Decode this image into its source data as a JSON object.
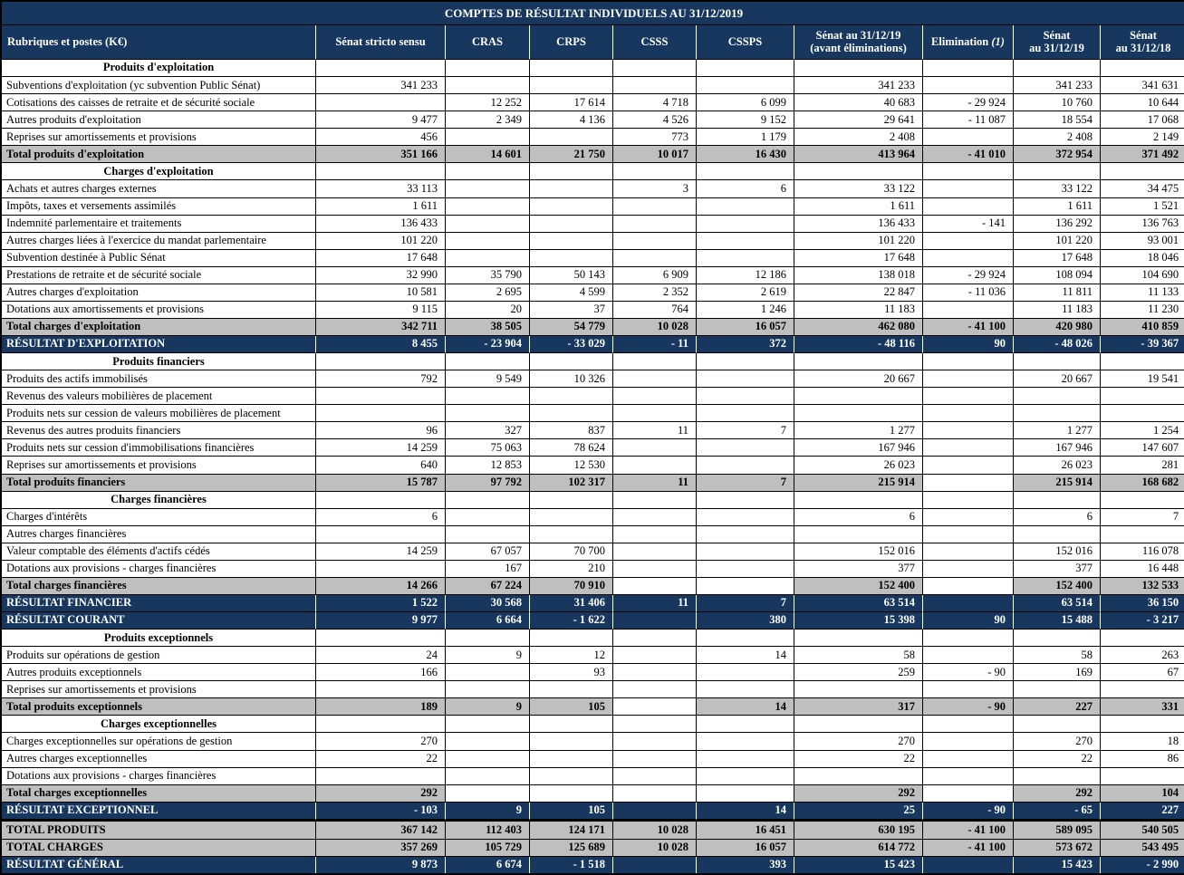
{
  "title": "COMPTES DE RÉSULTAT INDIVIDUELS AU 31/12/2019",
  "colors": {
    "navy": "#17375E",
    "gray": "#BFBFBF"
  },
  "columns": [
    {
      "id": "rubriques",
      "label": "Rubriques et postes (K€)"
    },
    {
      "id": "senat-stricto-sensu",
      "label": "Sénat stricto sensu"
    },
    {
      "id": "cras",
      "label": "CRAS"
    },
    {
      "id": "crps",
      "label": "CRPS"
    },
    {
      "id": "csss",
      "label": "CSSS"
    },
    {
      "id": "cssps",
      "label": "CSSPS"
    },
    {
      "id": "senat-avant-eliminations",
      "label": "Sénat au 31/12/19",
      "sublabel": "(avant éliminations)"
    },
    {
      "id": "elimination",
      "label": "Elimination",
      "note": "(1)"
    },
    {
      "id": "senat-31-12-19",
      "label": "Sénat",
      "sublabel": "au 31/12/19"
    },
    {
      "id": "senat-31-12-18",
      "label": "Sénat",
      "sublabel": "au 31/12/18"
    }
  ],
  "rows": [
    {
      "type": "section",
      "label": "Produits d'exploitation",
      "values": [
        "",
        "",
        "",
        "",
        "",
        "",
        "",
        "",
        ""
      ]
    },
    {
      "type": "data",
      "label": "Subventions d'exploitation (yc subvention Public Sénat)",
      "values": [
        "341 233",
        "",
        "",
        "",
        "",
        "341 233",
        "",
        "341 233",
        "341 631"
      ]
    },
    {
      "type": "data",
      "label": "Cotisations des caisses de retraite et de sécurité sociale",
      "values": [
        "",
        "12 252",
        "17 614",
        "4 718",
        "6 099",
        "40 683",
        "- 29 924",
        "10 760",
        "10 644"
      ]
    },
    {
      "type": "data",
      "label": "Autres produits d'exploitation",
      "values": [
        "9 477",
        "2 349",
        "4 136",
        "4 526",
        "9 152",
        "29 641",
        "- 11 087",
        "18 554",
        "17 068"
      ]
    },
    {
      "type": "data",
      "label": "Reprises sur amortissements et provisions",
      "values": [
        "456",
        "",
        "",
        "773",
        "1 179",
        "2 408",
        "",
        "2 408",
        "2 149"
      ]
    },
    {
      "type": "total",
      "label": "Total produits d'exploitation",
      "values": [
        "351 166",
        "14 601",
        "21 750",
        "10 017",
        "16 430",
        "413 964",
        "- 41 010",
        "372 954",
        "371 492"
      ]
    },
    {
      "type": "section",
      "label": "Charges d'exploitation",
      "values": [
        "",
        "",
        "",
        "",
        "",
        "",
        "",
        "",
        ""
      ]
    },
    {
      "type": "data",
      "label": "Achats et autres charges externes",
      "values": [
        "33 113",
        "",
        "",
        "3",
        "6",
        "33 122",
        "",
        "33 122",
        "34 475"
      ]
    },
    {
      "type": "data",
      "label": "Impôts, taxes et versements assimilés",
      "values": [
        "1 611",
        "",
        "",
        "",
        "",
        "1 611",
        "",
        "1 611",
        "1 521"
      ]
    },
    {
      "type": "data",
      "label": "Indemnité parlementaire et traitements",
      "values": [
        "136 433",
        "",
        "",
        "",
        "",
        "136 433",
        "- 141",
        "136 292",
        "136 763"
      ]
    },
    {
      "type": "data",
      "label": "Autres charges liées à l'exercice du mandat parlementaire",
      "values": [
        "101 220",
        "",
        "",
        "",
        "",
        "101 220",
        "",
        "101 220",
        "93 001"
      ]
    },
    {
      "type": "data",
      "label": "Subvention destinée à Public Sénat",
      "values": [
        "17 648",
        "",
        "",
        "",
        "",
        "17 648",
        "",
        "17 648",
        "18 046"
      ]
    },
    {
      "type": "data",
      "label": "Prestations de retraite et de sécurité sociale",
      "values": [
        "32 990",
        "35 790",
        "50 143",
        "6 909",
        "12 186",
        "138 018",
        "- 29 924",
        "108 094",
        "104 690"
      ]
    },
    {
      "type": "data",
      "label": "Autres charges d'exploitation",
      "values": [
        "10 581",
        "2 695",
        "4 599",
        "2 352",
        "2 619",
        "22 847",
        "- 11 036",
        "11 811",
        "11 133"
      ]
    },
    {
      "type": "data",
      "label": "Dotations aux amortissements et provisions",
      "values": [
        "9 115",
        "20",
        "37",
        "764",
        "1 246",
        "11 183",
        "",
        "11 183",
        "11 230"
      ]
    },
    {
      "type": "total",
      "label": "Total charges d'exploitation",
      "values": [
        "342 711",
        "38 505",
        "54 779",
        "10 028",
        "16 057",
        "462 080",
        "- 41 100",
        "420 980",
        "410 859"
      ]
    },
    {
      "type": "result",
      "label": "RÉSULTAT D'EXPLOITATION",
      "values": [
        "8 455",
        "- 23 904",
        "- 33 029",
        "- 11",
        "372",
        "- 48 116",
        "90",
        "- 48 026",
        "- 39 367"
      ]
    },
    {
      "type": "section",
      "label": "Produits financiers",
      "values": [
        "",
        "",
        "",
        "",
        "",
        "",
        "",
        "",
        ""
      ]
    },
    {
      "type": "data",
      "label": "Produits des actifs immobilisés",
      "values": [
        "792",
        "9 549",
        "10 326",
        "",
        "",
        "20 667",
        "",
        "20 667",
        "19 541"
      ]
    },
    {
      "type": "data",
      "label": "Revenus des valeurs mobilières de placement",
      "values": [
        "",
        "",
        "",
        "",
        "",
        "",
        "",
        "",
        ""
      ]
    },
    {
      "type": "data",
      "label": "Produits nets sur cession de valeurs mobilières de placement",
      "values": [
        "",
        "",
        "",
        "",
        "",
        "",
        "",
        "",
        ""
      ]
    },
    {
      "type": "data",
      "label": "Revenus des autres produits financiers",
      "values": [
        "96",
        "327",
        "837",
        "11",
        "7",
        "1 277",
        "",
        "1 277",
        "1 254"
      ]
    },
    {
      "type": "data",
      "label": "Produits nets sur cession d'immobilisations financières",
      "values": [
        "14 259",
        "75 063",
        "78 624",
        "",
        "",
        "167 946",
        "",
        "167 946",
        "147 607"
      ]
    },
    {
      "type": "data",
      "label": "Reprises sur amortissements et provisions",
      "values": [
        "640",
        "12 853",
        "12 530",
        "",
        "",
        "26 023",
        "",
        "26 023",
        "281"
      ]
    },
    {
      "type": "total",
      "label": "Total produits financiers",
      "values": [
        "15 787",
        "97 792",
        "102 317",
        "11",
        "7",
        "215 914",
        "",
        "215 914",
        "168 682"
      ]
    },
    {
      "type": "section",
      "label": "Charges financières",
      "values": [
        "",
        "",
        "",
        "",
        "",
        "",
        "",
        "",
        ""
      ]
    },
    {
      "type": "data",
      "label": "Charges d'intérêts",
      "values": [
        "6",
        "",
        "",
        "",
        "",
        "6",
        "",
        "6",
        "7"
      ]
    },
    {
      "type": "data",
      "label": "Autres charges financières",
      "values": [
        "",
        "",
        "",
        "",
        "",
        "",
        "",
        "",
        ""
      ]
    },
    {
      "type": "data",
      "label": "Valeur comptable des éléments d'actifs cédés",
      "values": [
        "14 259",
        "67 057",
        "70 700",
        "",
        "",
        "152 016",
        "",
        "152 016",
        "116 078"
      ]
    },
    {
      "type": "data",
      "label": "Dotations aux  provisions - charges financières",
      "values": [
        "",
        "167",
        "210",
        "",
        "",
        "377",
        "",
        "377",
        "16 448"
      ]
    },
    {
      "type": "total",
      "label": "Total charges financières",
      "values": [
        "14 266",
        "67 224",
        "70 910",
        "",
        "",
        "152 400",
        "",
        "152 400",
        "132 533"
      ]
    },
    {
      "type": "result",
      "label": "RÉSULTAT FINANCIER",
      "values": [
        "1 522",
        "30 568",
        "31 406",
        "11",
        "7",
        "63 514",
        "",
        "63 514",
        "36 150"
      ]
    },
    {
      "type": "result",
      "label": "RÉSULTAT COURANT",
      "values": [
        "9 977",
        "6 664",
        "- 1 622",
        "",
        "380",
        "15 398",
        "90",
        "15 488",
        "- 3 217"
      ]
    },
    {
      "type": "section",
      "label": "Produits exceptionnels",
      "values": [
        "",
        "",
        "",
        "",
        "",
        "",
        "",
        "",
        ""
      ]
    },
    {
      "type": "data",
      "label": "Produits sur opérations de gestion",
      "values": [
        "24",
        "9",
        "12",
        "",
        "14",
        "58",
        "",
        "58",
        "263"
      ]
    },
    {
      "type": "data",
      "label": "Autres produits exceptionnels",
      "values": [
        "166",
        "",
        "93",
        "",
        "",
        "259",
        "- 90",
        "169",
        "67"
      ]
    },
    {
      "type": "data",
      "label": "Reprises sur amortissements et provisions",
      "values": [
        "",
        "",
        "",
        "",
        "",
        "",
        "",
        "",
        ""
      ]
    },
    {
      "type": "total",
      "label": "Total produits exceptionnels",
      "values": [
        "189",
        "9",
        "105",
        "",
        "14",
        "317",
        "- 90",
        "227",
        "331"
      ]
    },
    {
      "type": "section",
      "label": "Charges exceptionnelles",
      "values": [
        "",
        "",
        "",
        "",
        "",
        "",
        "",
        "",
        ""
      ]
    },
    {
      "type": "data",
      "label": "Charges exceptionnelles sur opérations de gestion",
      "values": [
        "270",
        "",
        "",
        "",
        "",
        "270",
        "",
        "270",
        "18"
      ]
    },
    {
      "type": "data",
      "label": "Autres charges exceptionnelles",
      "values": [
        "22",
        "",
        "",
        "",
        "",
        "22",
        "",
        "22",
        "86"
      ]
    },
    {
      "type": "data",
      "label": "Dotations aux  provisions - charges financières",
      "values": [
        "",
        "",
        "",
        "",
        "",
        "",
        "",
        "",
        ""
      ]
    },
    {
      "type": "total",
      "label": "Total charges exceptionnelles",
      "values": [
        "292",
        "",
        "",
        "",
        "",
        "292",
        "",
        "292",
        "104"
      ]
    },
    {
      "type": "result",
      "label": "RÉSULTAT EXCEPTIONNEL",
      "values": [
        "- 103",
        "9",
        "105",
        "",
        "14",
        "25",
        "- 90",
        "- 65",
        "227"
      ]
    },
    {
      "type": "grand_total",
      "label": "TOTAL PRODUITS",
      "values": [
        "367 142",
        "112 403",
        "124 171",
        "10 028",
        "16 451",
        "630 195",
        "- 41 100",
        "589 095",
        "540 505"
      ]
    },
    {
      "type": "grand_total",
      "label": "TOTAL CHARGES",
      "values": [
        "357 269",
        "105 729",
        "125 689",
        "10 028",
        "16 057",
        "614 772",
        "- 41 100",
        "573 672",
        "543 495"
      ]
    },
    {
      "type": "grand_result",
      "label": "RÉSULTAT GÉNÉRAL",
      "values": [
        "9 873",
        "6 674",
        "- 1 518",
        "",
        "393",
        "15 423",
        "",
        "15 423",
        "- 2 990"
      ]
    }
  ]
}
